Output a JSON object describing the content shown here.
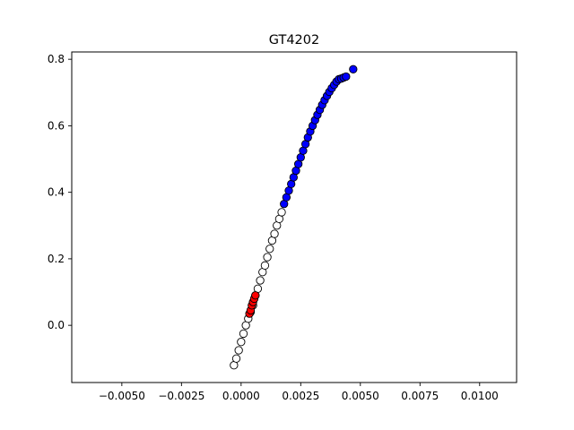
{
  "chart_data": {
    "type": "scatter",
    "title": "GT4202",
    "xlabel": "",
    "ylabel": "",
    "xlim": [
      -0.0071,
      0.01155
    ],
    "ylim": [
      -0.172,
      0.822
    ],
    "xticks": [
      -0.005,
      -0.0025,
      0.0,
      0.0025,
      0.005,
      0.0075,
      0.01
    ],
    "xtick_labels": [
      "−0.0050",
      "−0.0025",
      "0.0000",
      "0.0025",
      "0.0050",
      "0.0075",
      "0.0100"
    ],
    "yticks": [
      0.0,
      0.2,
      0.4,
      0.6,
      0.8
    ],
    "ytick_labels": [
      "0.0",
      "0.2",
      "0.4",
      "0.6",
      "0.8"
    ],
    "grid": false,
    "legend": "none",
    "colors": {
      "blue": "#0000ff",
      "white": "#ffffff",
      "red": "#ff0000",
      "edge": "#000000"
    },
    "series": [
      {
        "color": "white",
        "x": [
          -0.0003,
          -0.0002,
          -0.0001,
          0.0,
          0.0001,
          0.0002,
          0.0003,
          0.0004,
          0.0005,
          0.0006,
          0.0007,
          0.0008,
          0.0009,
          0.001,
          0.0011,
          0.0012,
          0.0013,
          0.0014,
          0.0015,
          0.0016,
          0.0017
        ],
        "y": [
          -0.12,
          -0.1,
          -0.075,
          -0.05,
          -0.025,
          0.0,
          0.02,
          0.04,
          0.06,
          0.09,
          0.11,
          0.135,
          0.16,
          0.18,
          0.205,
          0.23,
          0.255,
          0.275,
          0.3,
          0.32,
          0.34
        ]
      },
      {
        "color": "red",
        "x": [
          0.00035,
          0.0004,
          0.00045,
          0.0005,
          0.00055,
          0.0006
        ],
        "y": [
          0.035,
          0.045,
          0.06,
          0.07,
          0.08,
          0.09
        ]
      },
      {
        "color": "blue",
        "x": [
          0.0018,
          0.0019,
          0.002,
          0.0021,
          0.0022,
          0.0023,
          0.0024,
          0.0025,
          0.0026,
          0.0027,
          0.0028,
          0.0029,
          0.003,
          0.0031,
          0.0032,
          0.0033,
          0.0034,
          0.0035,
          0.0036,
          0.0037,
          0.0038,
          0.0039,
          0.004,
          0.0041,
          0.0042,
          0.0043,
          0.0044,
          0.0047
        ],
        "y": [
          0.365,
          0.385,
          0.405,
          0.425,
          0.445,
          0.465,
          0.485,
          0.505,
          0.525,
          0.545,
          0.565,
          0.583,
          0.6,
          0.617,
          0.633,
          0.648,
          0.663,
          0.677,
          0.69,
          0.702,
          0.713,
          0.723,
          0.733,
          0.74,
          0.742,
          0.745,
          0.748,
          0.77
        ]
      }
    ]
  }
}
